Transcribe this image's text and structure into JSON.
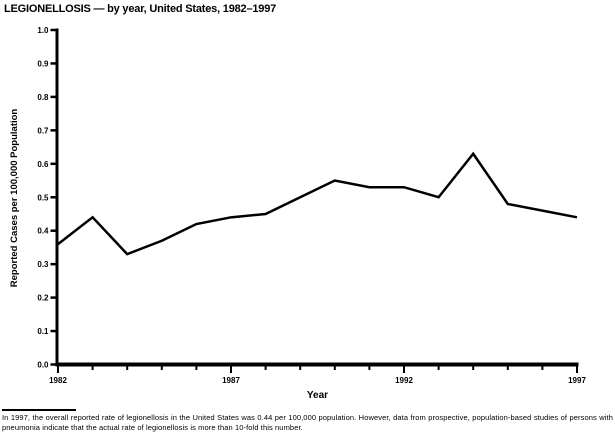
{
  "title": "LEGIONELLOSIS — by year, United States, 1982–1997",
  "chart_data": {
    "type": "line",
    "title": "LEGIONELLOSIS — by year, United States, 1982–1997",
    "xlabel": "Year",
    "ylabel": "Reported Cases per 100,000 Population",
    "x": [
      1982,
      1983,
      1984,
      1985,
      1986,
      1987,
      1988,
      1989,
      1990,
      1991,
      1992,
      1993,
      1994,
      1995,
      1996,
      1997
    ],
    "values": [
      0.36,
      0.44,
      0.33,
      0.37,
      0.42,
      0.44,
      0.45,
      0.5,
      0.55,
      0.53,
      0.53,
      0.5,
      0.63,
      0.48,
      0.46,
      0.44
    ],
    "ylim": [
      0.0,
      1.0
    ],
    "y_tick_step": 0.1,
    "x_major_ticks": [
      1982,
      1987,
      1992,
      1997
    ],
    "grid": false,
    "legend": "none",
    "line_color": "#000000",
    "background_color": "#ffffff"
  },
  "footnote": {
    "text": "In 1997, the overall reported rate of legionellosis in the United States was 0.44 per 100,000 population. However, data from prospective, population-based studies of persons with pneumonia indicate that the actual rate of legionellosis is more than 10-fold this number."
  }
}
